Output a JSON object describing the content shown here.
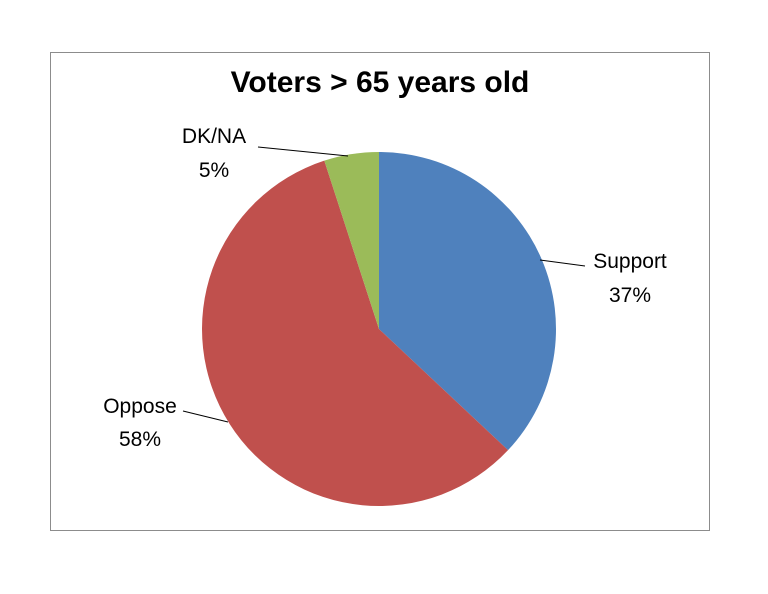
{
  "chart_data": {
    "type": "pie",
    "title": "Voters > 65 years old",
    "categories": [
      "Support",
      "Oppose",
      "DK/NA"
    ],
    "values": [
      37,
      58,
      5
    ],
    "value_labels": [
      "37%",
      "58%",
      "5%"
    ],
    "colors": [
      "#4F81BD",
      "#C0504D",
      "#9BBB59"
    ],
    "start_angle_deg": 0,
    "direction": "clockwise",
    "legend": "none",
    "data_labels": "outside with leader lines"
  }
}
